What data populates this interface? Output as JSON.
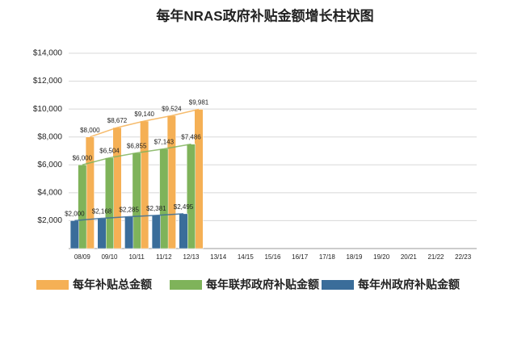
{
  "chart_data": {
    "type": "bar",
    "title": "每年NRAS政府补贴金额增长柱状图",
    "categories": [
      "08/09",
      "09/10",
      "10/11",
      "11/12",
      "12/13",
      "13/14",
      "14/15",
      "15/16",
      "16/17",
      "17/18",
      "18/19",
      "19/20",
      "20/21",
      "21/22",
      "22/23"
    ],
    "series": [
      {
        "name": "每年补贴总金额",
        "color": "#f5b055",
        "values": [
          8000,
          8672,
          9140,
          9524,
          9981,
          null,
          null,
          null,
          null,
          null,
          null,
          null,
          null,
          null,
          null
        ],
        "value_labels": [
          "$8,000",
          "$8,672",
          "$9,140",
          "$9,524",
          "$9,981",
          null,
          null,
          null,
          null,
          null,
          null,
          null,
          null,
          null,
          null
        ]
      },
      {
        "name": "每年联邦政府补贴金额",
        "color": "#7fb35a",
        "values": [
          6000,
          6504,
          6855,
          7143,
          7486,
          null,
          null,
          null,
          null,
          null,
          null,
          null,
          null,
          null,
          null
        ],
        "value_labels": [
          "$6,000",
          "$6,504",
          "$6,855",
          "$7,143",
          "$7,486",
          null,
          null,
          null,
          null,
          null,
          null,
          null,
          null,
          null,
          null
        ]
      },
      {
        "name": "每年州政府补贴金额",
        "color": "#3a6d9a",
        "values": [
          2000,
          2168,
          2285,
          2381,
          2495,
          null,
          null,
          null,
          null,
          null,
          null,
          null,
          null,
          null,
          null
        ],
        "value_labels": [
          "$2,000",
          "$2,168",
          "$2,285",
          "$2,381",
          "$2,495",
          null,
          null,
          null,
          null,
          null,
          null,
          null,
          null,
          null,
          null
        ]
      }
    ],
    "ylim": [
      0,
      14000
    ],
    "yticks": [
      {
        "value": 2000,
        "label": "$2,000"
      },
      {
        "value": 4000,
        "label": "$4,000"
      },
      {
        "value": 6000,
        "label": "$6,000"
      },
      {
        "value": 8000,
        "label": "$8,000"
      },
      {
        "value": 10000,
        "label": "$10,000"
      },
      {
        "value": 12000,
        "label": "$12,000"
      },
      {
        "value": 14000,
        "label": "$14,000"
      }
    ],
    "grid": true
  }
}
